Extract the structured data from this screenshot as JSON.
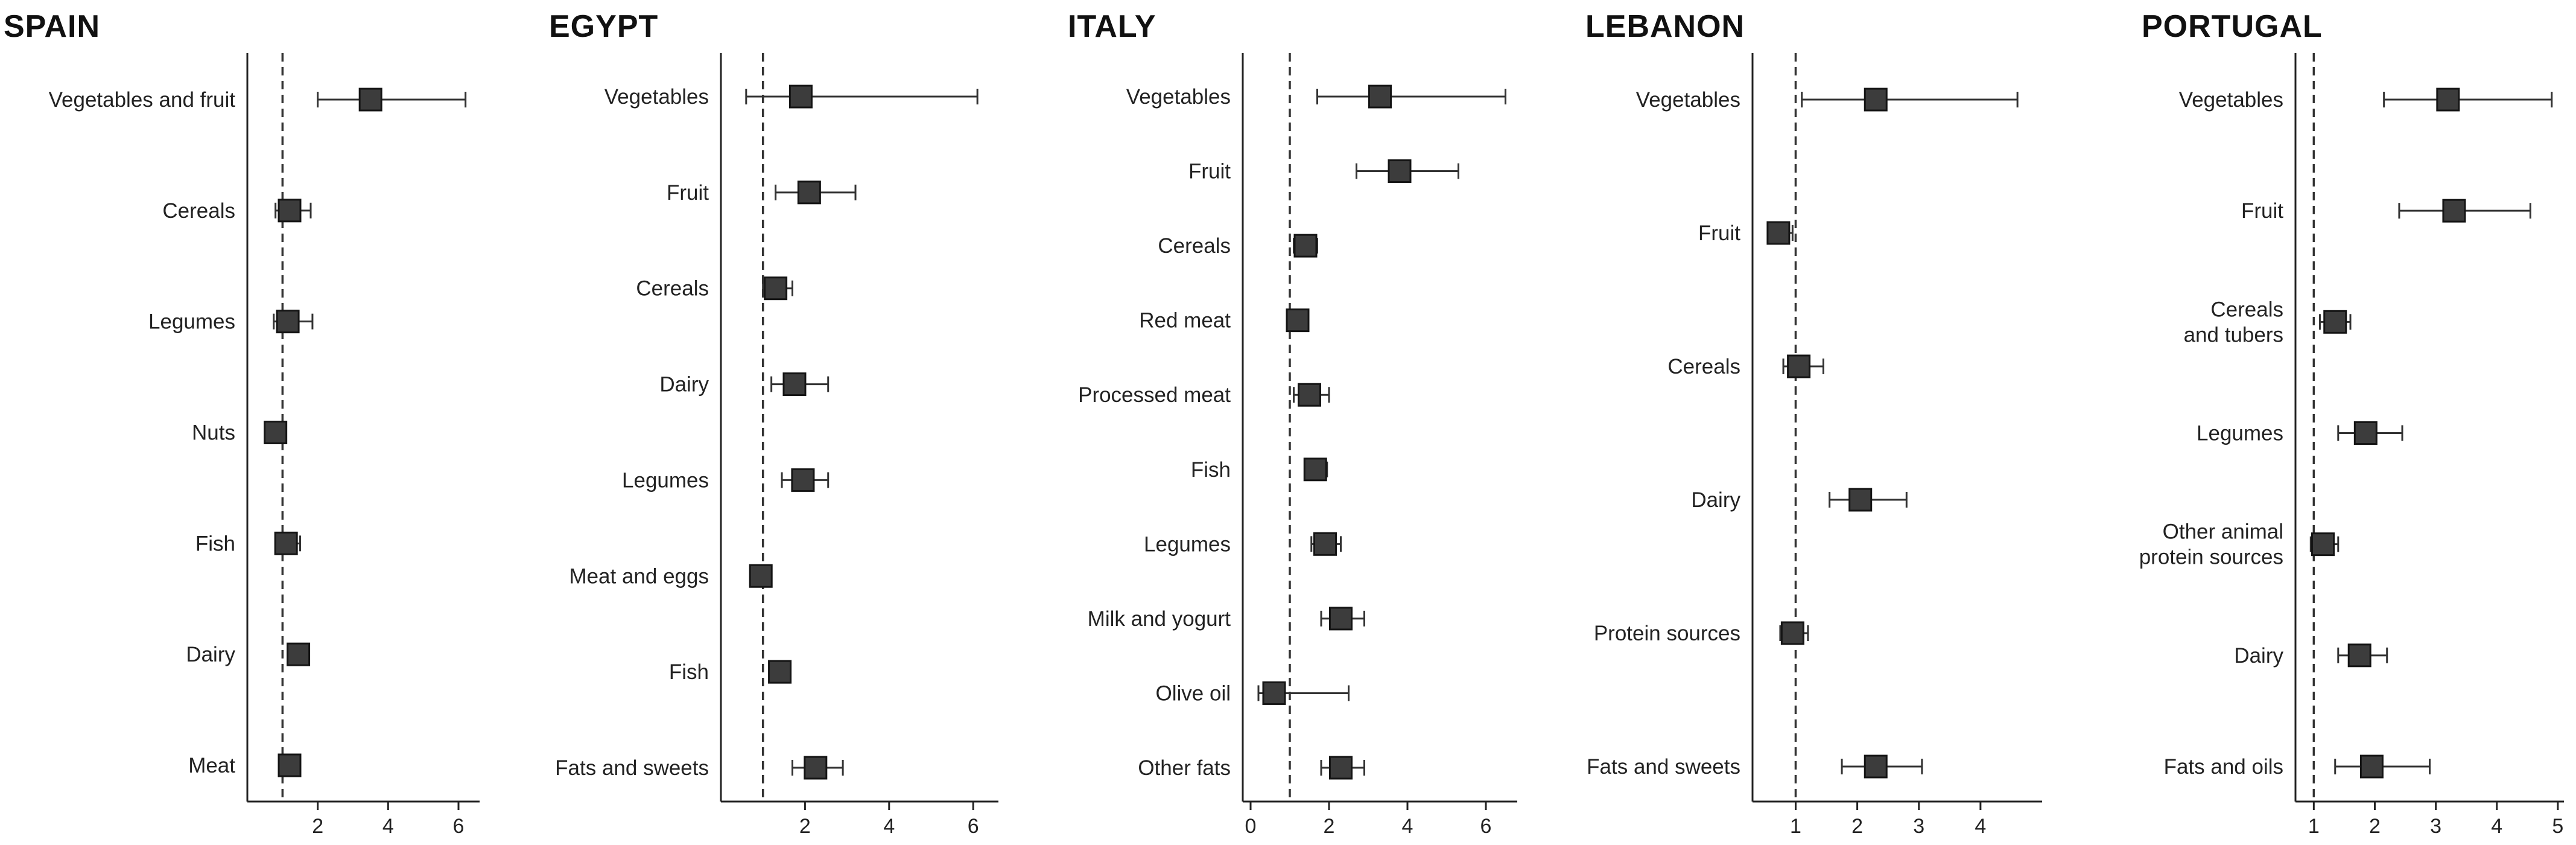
{
  "chart_data": [
    {
      "type": "forest",
      "title": "SPAIN",
      "categories": [
        "Vegetables and fruit",
        "Cereals",
        "Legumes",
        "Nuts",
        "Fish",
        "Dairy",
        "Meat"
      ],
      "points": [
        {
          "category": "Vegetables and fruit",
          "estimate": 3.5,
          "lower": 2.0,
          "upper": 6.2
        },
        {
          "category": "Cereals",
          "estimate": 1.2,
          "lower": 0.8,
          "upper": 1.8
        },
        {
          "category": "Legumes",
          "estimate": 1.15,
          "lower": 0.75,
          "upper": 1.85
        },
        {
          "category": "Nuts",
          "estimate": 0.8,
          "lower": 0.6,
          "upper": 1.0
        },
        {
          "category": "Fish",
          "estimate": 1.1,
          "lower": 0.8,
          "upper": 1.5
        },
        {
          "category": "Dairy",
          "estimate": 1.45,
          "lower": 1.2,
          "upper": 1.75
        },
        {
          "category": "Meat",
          "estimate": 1.2,
          "lower": 1.0,
          "upper": 1.45
        }
      ],
      "xlim": [
        0.0,
        6.6
      ],
      "xticks": [
        2,
        4,
        6
      ],
      "reference_line": 1
    },
    {
      "type": "forest",
      "title": "EGYPT",
      "categories": [
        "Vegetables",
        "Fruit",
        "Cereals",
        "Dairy",
        "Legumes",
        "Meat and eggs",
        "Fish",
        "Fats and sweets"
      ],
      "points": [
        {
          "category": "Vegetables",
          "estimate": 1.9,
          "lower": 0.6,
          "upper": 6.1
        },
        {
          "category": "Fruit",
          "estimate": 2.1,
          "lower": 1.3,
          "upper": 3.2
        },
        {
          "category": "Cereals",
          "estimate": 1.3,
          "lower": 1.0,
          "upper": 1.7
        },
        {
          "category": "Dairy",
          "estimate": 1.75,
          "lower": 1.2,
          "upper": 2.55
        },
        {
          "category": "Legumes",
          "estimate": 1.95,
          "lower": 1.45,
          "upper": 2.55
        },
        {
          "category": "Meat and eggs",
          "estimate": 0.95,
          "lower": 0.85,
          "upper": 1.05
        },
        {
          "category": "Fish",
          "estimate": 1.4,
          "lower": 1.2,
          "upper": 1.65
        },
        {
          "category": "Fats and sweets",
          "estimate": 2.25,
          "lower": 1.7,
          "upper": 2.9
        }
      ],
      "xlim": [
        0.0,
        6.6
      ],
      "xticks": [
        2,
        4,
        6
      ],
      "reference_line": 1
    },
    {
      "type": "forest",
      "title": "ITALY",
      "categories": [
        "Vegetables",
        "Fruit",
        "Cereals",
        "Red meat",
        "Processed meat",
        "Fish",
        "Legumes",
        "Milk and yogurt",
        "Olive oil",
        "Other fats"
      ],
      "points": [
        {
          "category": "Vegetables",
          "estimate": 3.3,
          "lower": 1.7,
          "upper": 6.5
        },
        {
          "category": "Fruit",
          "estimate": 3.8,
          "lower": 2.7,
          "upper": 5.3
        },
        {
          "category": "Cereals",
          "estimate": 1.4,
          "lower": 1.1,
          "upper": 1.7
        },
        {
          "category": "Red meat",
          "estimate": 1.2,
          "lower": 1.0,
          "upper": 1.4
        },
        {
          "category": "Processed meat",
          "estimate": 1.5,
          "lower": 1.1,
          "upper": 2.0
        },
        {
          "category": "Fish",
          "estimate": 1.65,
          "lower": 1.4,
          "upper": 1.95
        },
        {
          "category": "Legumes",
          "estimate": 1.9,
          "lower": 1.55,
          "upper": 2.3
        },
        {
          "category": "Milk and yogurt",
          "estimate": 2.3,
          "lower": 1.8,
          "upper": 2.9
        },
        {
          "category": "Olive oil",
          "estimate": 0.6,
          "lower": 0.2,
          "upper": 2.5
        },
        {
          "category": "Other fats",
          "estimate": 2.3,
          "lower": 1.8,
          "upper": 2.9
        }
      ],
      "xlim": [
        -0.2,
        6.8
      ],
      "xticks": [
        0,
        2,
        4,
        6
      ],
      "reference_line": 1
    },
    {
      "type": "forest",
      "title": "LEBANON",
      "categories": [
        "Vegetables",
        "Fruit",
        "Cereals",
        "Dairy",
        "Protein sources",
        "Fats and sweets"
      ],
      "points": [
        {
          "category": "Vegetables",
          "estimate": 2.3,
          "lower": 1.1,
          "upper": 4.6
        },
        {
          "category": "Fruit",
          "estimate": 0.72,
          "lower": 0.55,
          "upper": 0.95
        },
        {
          "category": "Cereals",
          "estimate": 1.05,
          "lower": 0.8,
          "upper": 1.45
        },
        {
          "category": "Dairy",
          "estimate": 2.05,
          "lower": 1.55,
          "upper": 2.8
        },
        {
          "category": "Protein sources",
          "estimate": 0.95,
          "lower": 0.75,
          "upper": 1.2
        },
        {
          "category": "Fats and sweets",
          "estimate": 2.3,
          "lower": 1.75,
          "upper": 3.05
        }
      ],
      "xlim": [
        0.3,
        5.0
      ],
      "xticks": [
        1,
        2,
        3,
        4
      ],
      "reference_line": 1
    },
    {
      "type": "forest",
      "title": "PORTUGAL",
      "categories": [
        "Vegetables",
        "Fruit",
        "Cereals and tubers",
        "Legumes",
        "Other animal protein sources",
        "Dairy",
        "Fats and  oils"
      ],
      "points": [
        {
          "category": "Vegetables",
          "estimate": 3.2,
          "lower": 2.15,
          "upper": 4.9
        },
        {
          "category": "Fruit",
          "estimate": 3.3,
          "lower": 2.4,
          "upper": 4.55
        },
        {
          "category": "Cereals and tubers",
          "estimate": 1.35,
          "lower": 1.1,
          "upper": 1.6
        },
        {
          "category": "Legumes",
          "estimate": 1.85,
          "lower": 1.4,
          "upper": 2.45
        },
        {
          "category": "Other animal protein sources",
          "estimate": 1.15,
          "lower": 0.95,
          "upper": 1.4
        },
        {
          "category": "Dairy",
          "estimate": 1.75,
          "lower": 1.4,
          "upper": 2.2
        },
        {
          "category": "Fats and  oils",
          "estimate": 1.95,
          "lower": 1.35,
          "upper": 2.9
        }
      ],
      "xlim": [
        0.7,
        5.1
      ],
      "xticks": [
        1,
        2,
        3,
        4,
        5
      ],
      "reference_line": 1
    }
  ]
}
